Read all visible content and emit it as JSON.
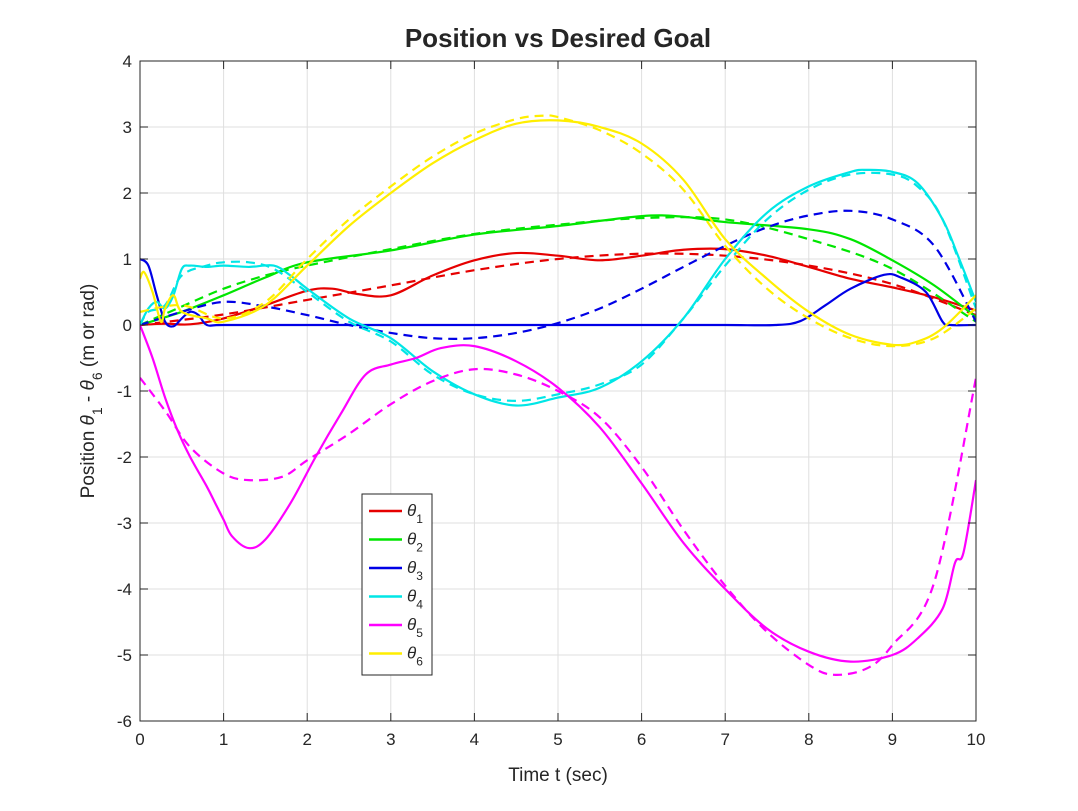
{
  "chart_data": {
    "type": "line",
    "title": "Position vs Desired Goal",
    "xlabel": "Time t (sec)",
    "ylabel": {
      "prefix": "Position ",
      "theta": "θ",
      "sub1": "1",
      "mid": " - ",
      "sub2": "6",
      "suffix": " (m or rad)"
    },
    "xlim": [
      0,
      10
    ],
    "ylim": [
      -6,
      4
    ],
    "xticks": [
      0,
      1,
      2,
      3,
      4,
      5,
      6,
      7,
      8,
      9,
      10
    ],
    "yticks": [
      -6,
      -5,
      -4,
      -3,
      -2,
      -1,
      0,
      1,
      2,
      3,
      4
    ],
    "xtick_labels": [
      "0",
      "1",
      "2",
      "3",
      "4",
      "5",
      "6",
      "7",
      "8",
      "9",
      "10"
    ],
    "ytick_labels": [
      "-6",
      "-5",
      "-4",
      "-3",
      "-2",
      "-1",
      "0",
      "1",
      "2",
      "3",
      "4"
    ],
    "grid": true,
    "legend_position": "lower-left-center",
    "series": [
      {
        "name": "θ1",
        "symbol": "θ",
        "subscript": "1",
        "color": "#e60000",
        "actual": [
          [
            0,
            0
          ],
          [
            0.3,
            0.02
          ],
          [
            0.6,
            0.01
          ],
          [
            1,
            0.1
          ],
          [
            1.5,
            0.3
          ],
          [
            2,
            0.52
          ],
          [
            2.3,
            0.55
          ],
          [
            2.6,
            0.47
          ],
          [
            3,
            0.45
          ],
          [
            3.5,
            0.75
          ],
          [
            4,
            0.98
          ],
          [
            4.5,
            1.09
          ],
          [
            5,
            1.05
          ],
          [
            5.5,
            0.98
          ],
          [
            6,
            1.05
          ],
          [
            6.5,
            1.14
          ],
          [
            7,
            1.15
          ],
          [
            7.5,
            1.05
          ],
          [
            8,
            0.88
          ],
          [
            8.5,
            0.7
          ],
          [
            9,
            0.57
          ],
          [
            9.5,
            0.42
          ],
          [
            10,
            0.22
          ]
        ],
        "desired": [
          [
            0,
            0
          ],
          [
            1,
            0.16
          ],
          [
            2,
            0.38
          ],
          [
            3,
            0.6
          ],
          [
            4,
            0.83
          ],
          [
            5,
            1.0
          ],
          [
            6,
            1.08
          ],
          [
            7,
            1.05
          ],
          [
            8,
            0.9
          ],
          [
            9,
            0.62
          ],
          [
            10,
            0.15
          ]
        ]
      },
      {
        "name": "θ2",
        "symbol": "θ",
        "subscript": "2",
        "color": "#00e600",
        "actual": [
          [
            0,
            0
          ],
          [
            0.5,
            0.2
          ],
          [
            1,
            0.45
          ],
          [
            1.5,
            0.72
          ],
          [
            2,
            0.95
          ],
          [
            3,
            1.13
          ],
          [
            4,
            1.37
          ],
          [
            5,
            1.5
          ],
          [
            6,
            1.65
          ],
          [
            6.5,
            1.64
          ],
          [
            7,
            1.56
          ],
          [
            8,
            1.45
          ],
          [
            8.5,
            1.3
          ],
          [
            9,
            0.98
          ],
          [
            9.5,
            0.6
          ],
          [
            10,
            0.12
          ]
        ],
        "desired": [
          [
            0,
            0
          ],
          [
            0.5,
            0.28
          ],
          [
            1,
            0.55
          ],
          [
            1.5,
            0.75
          ],
          [
            2,
            0.9
          ],
          [
            3,
            1.15
          ],
          [
            4,
            1.38
          ],
          [
            5,
            1.52
          ],
          [
            6,
            1.62
          ],
          [
            7,
            1.6
          ],
          [
            8,
            1.3
          ],
          [
            9,
            0.85
          ],
          [
            10,
            0.05
          ]
        ]
      },
      {
        "name": "θ3",
        "symbol": "θ",
        "subscript": "3",
        "color": "#0000e6",
        "actual": [
          [
            0,
            1.0
          ],
          [
            0.1,
            0.9
          ],
          [
            0.2,
            0.45
          ],
          [
            0.3,
            0.05
          ],
          [
            0.4,
            -0.02
          ],
          [
            0.5,
            0.1
          ],
          [
            0.6,
            0.2
          ],
          [
            0.7,
            0.15
          ],
          [
            0.8,
            0
          ],
          [
            1,
            0
          ],
          [
            2,
            0
          ],
          [
            3,
            0
          ],
          [
            4,
            0
          ],
          [
            5,
            0
          ],
          [
            6,
            0
          ],
          [
            7,
            0
          ],
          [
            7.6,
            0
          ],
          [
            7.9,
            0.06
          ],
          [
            8.2,
            0.3
          ],
          [
            8.5,
            0.55
          ],
          [
            8.9,
            0.76
          ],
          [
            9.1,
            0.72
          ],
          [
            9.4,
            0.5
          ],
          [
            9.6,
            0.05
          ],
          [
            9.7,
            0
          ],
          [
            10,
            0
          ]
        ],
        "desired": [
          [
            0,
            0
          ],
          [
            0.5,
            0.2
          ],
          [
            1,
            0.35
          ],
          [
            1.5,
            0.28
          ],
          [
            2,
            0.15
          ],
          [
            2.5,
            0
          ],
          [
            3,
            -0.12
          ],
          [
            3.5,
            -0.2
          ],
          [
            4,
            -0.2
          ],
          [
            4.5,
            -0.12
          ],
          [
            5,
            0.03
          ],
          [
            5.5,
            0.25
          ],
          [
            6,
            0.55
          ],
          [
            6.5,
            0.88
          ],
          [
            7,
            1.2
          ],
          [
            7.5,
            1.48
          ],
          [
            8,
            1.66
          ],
          [
            8.5,
            1.73
          ],
          [
            9,
            1.6
          ],
          [
            9.5,
            1.2
          ],
          [
            10,
            0.05
          ]
        ]
      },
      {
        "name": "θ4",
        "symbol": "θ",
        "subscript": "4",
        "color": "#00e6e6",
        "actual": [
          [
            0,
            0
          ],
          [
            0.1,
            0.25
          ],
          [
            0.2,
            0.35
          ],
          [
            0.3,
            0.25
          ],
          [
            0.4,
            0.45
          ],
          [
            0.5,
            0.85
          ],
          [
            0.6,
            0.9
          ],
          [
            0.8,
            0.88
          ],
          [
            1,
            0.9
          ],
          [
            1.3,
            0.88
          ],
          [
            1.6,
            0.9
          ],
          [
            1.8,
            0.75
          ],
          [
            2,
            0.55
          ],
          [
            2.5,
            0.1
          ],
          [
            3,
            -0.2
          ],
          [
            3.5,
            -0.7
          ],
          [
            4,
            -1.05
          ],
          [
            4.5,
            -1.22
          ],
          [
            5,
            -1.1
          ],
          [
            5.5,
            -0.95
          ],
          [
            6,
            -0.55
          ],
          [
            6.5,
            0.1
          ],
          [
            7,
            1.0
          ],
          [
            7.5,
            1.7
          ],
          [
            8,
            2.1
          ],
          [
            8.5,
            2.32
          ],
          [
            8.7,
            2.35
          ],
          [
            9,
            2.32
          ],
          [
            9.3,
            2.15
          ],
          [
            9.6,
            1.6
          ],
          [
            9.8,
            1.0
          ],
          [
            10,
            0.35
          ]
        ],
        "desired": [
          [
            0,
            0
          ],
          [
            0.1,
            0.2
          ],
          [
            0.3,
            0.3
          ],
          [
            0.5,
            0.75
          ],
          [
            0.8,
            0.9
          ],
          [
            1,
            0.95
          ],
          [
            1.3,
            0.95
          ],
          [
            1.6,
            0.85
          ],
          [
            2,
            0.5
          ],
          [
            2.5,
            0.05
          ],
          [
            3,
            -0.25
          ],
          [
            3.5,
            -0.75
          ],
          [
            4,
            -1.05
          ],
          [
            4.5,
            -1.15
          ],
          [
            5,
            -1.05
          ],
          [
            5.5,
            -0.9
          ],
          [
            6,
            -0.6
          ],
          [
            6.5,
            0.1
          ],
          [
            7,
            0.9
          ],
          [
            7.5,
            1.6
          ],
          [
            8,
            2.05
          ],
          [
            8.5,
            2.28
          ],
          [
            9,
            2.28
          ],
          [
            9.3,
            2.1
          ],
          [
            9.6,
            1.6
          ],
          [
            10,
            0.25
          ]
        ]
      },
      {
        "name": "θ5",
        "symbol": "θ",
        "subscript": "5",
        "color": "#ff00ff",
        "actual": [
          [
            0,
            0
          ],
          [
            0.15,
            -0.5
          ],
          [
            0.3,
            -1.1
          ],
          [
            0.45,
            -1.6
          ],
          [
            0.6,
            -2.0
          ],
          [
            0.8,
            -2.45
          ],
          [
            0.9,
            -2.7
          ],
          [
            1.0,
            -2.95
          ],
          [
            1.1,
            -3.2
          ],
          [
            1.3,
            -3.38
          ],
          [
            1.5,
            -3.25
          ],
          [
            1.8,
            -2.7
          ],
          [
            2.1,
            -2.0
          ],
          [
            2.4,
            -1.35
          ],
          [
            2.7,
            -0.75
          ],
          [
            3,
            -0.6
          ],
          [
            3.3,
            -0.5
          ],
          [
            3.6,
            -0.35
          ],
          [
            4,
            -0.32
          ],
          [
            4.5,
            -0.55
          ],
          [
            5,
            -0.95
          ],
          [
            5.5,
            -1.55
          ],
          [
            6,
            -2.4
          ],
          [
            6.5,
            -3.3
          ],
          [
            7,
            -4.0
          ],
          [
            7.5,
            -4.6
          ],
          [
            8,
            -4.95
          ],
          [
            8.5,
            -5.1
          ],
          [
            9,
            -5.0
          ],
          [
            9.3,
            -4.75
          ],
          [
            9.6,
            -4.3
          ],
          [
            9.75,
            -3.6
          ],
          [
            9.85,
            -3.45
          ],
          [
            10,
            -2.35
          ]
        ],
        "desired": [
          [
            0,
            -0.8
          ],
          [
            0.3,
            -1.3
          ],
          [
            0.6,
            -1.85
          ],
          [
            1,
            -2.25
          ],
          [
            1.3,
            -2.35
          ],
          [
            1.7,
            -2.3
          ],
          [
            2,
            -2.05
          ],
          [
            2.5,
            -1.65
          ],
          [
            3,
            -1.2
          ],
          [
            3.5,
            -0.85
          ],
          [
            4,
            -0.67
          ],
          [
            4.5,
            -0.75
          ],
          [
            5,
            -1.0
          ],
          [
            5.5,
            -1.4
          ],
          [
            6,
            -2.15
          ],
          [
            6.5,
            -3.1
          ],
          [
            7,
            -3.95
          ],
          [
            7.5,
            -4.65
          ],
          [
            8,
            -5.15
          ],
          [
            8.3,
            -5.3
          ],
          [
            8.7,
            -5.2
          ],
          [
            9,
            -4.85
          ],
          [
            9.5,
            -3.9
          ],
          [
            10,
            -0.8
          ]
        ]
      },
      {
        "name": "θ6",
        "symbol": "θ",
        "subscript": "6",
        "color": "#ffee00",
        "actual": [
          [
            0,
            0.7
          ],
          [
            0.05,
            0.8
          ],
          [
            0.15,
            0.5
          ],
          [
            0.25,
            0.05
          ],
          [
            0.3,
            0.25
          ],
          [
            0.4,
            0.45
          ],
          [
            0.5,
            0.2
          ],
          [
            0.8,
            0.1
          ],
          [
            1,
            0.05
          ],
          [
            1.5,
            0.3
          ],
          [
            2,
            0.9
          ],
          [
            2.5,
            1.5
          ],
          [
            3,
            2.0
          ],
          [
            3.5,
            2.45
          ],
          [
            4,
            2.8
          ],
          [
            4.5,
            3.05
          ],
          [
            5,
            3.1
          ],
          [
            5.5,
            3.0
          ],
          [
            6,
            2.75
          ],
          [
            6.5,
            2.2
          ],
          [
            7,
            1.3
          ],
          [
            7.5,
            0.7
          ],
          [
            8,
            0.2
          ],
          [
            8.5,
            -0.15
          ],
          [
            9,
            -0.3
          ],
          [
            9.3,
            -0.25
          ],
          [
            9.6,
            -0.05
          ],
          [
            10,
            0.45
          ]
        ],
        "desired": [
          [
            0,
            0.2
          ],
          [
            0.5,
            0.3
          ],
          [
            1,
            0.1
          ],
          [
            1.5,
            0.35
          ],
          [
            2,
            1.0
          ],
          [
            2.5,
            1.6
          ],
          [
            3,
            2.1
          ],
          [
            3.5,
            2.55
          ],
          [
            4,
            2.9
          ],
          [
            4.5,
            3.12
          ],
          [
            4.8,
            3.17
          ],
          [
            5,
            3.15
          ],
          [
            5.5,
            2.95
          ],
          [
            6,
            2.6
          ],
          [
            6.5,
            2.05
          ],
          [
            7,
            1.2
          ],
          [
            7.5,
            0.55
          ],
          [
            8,
            0.1
          ],
          [
            8.5,
            -0.2
          ],
          [
            9,
            -0.32
          ],
          [
            9.5,
            -0.2
          ],
          [
            10,
            0.25
          ]
        ]
      }
    ]
  }
}
